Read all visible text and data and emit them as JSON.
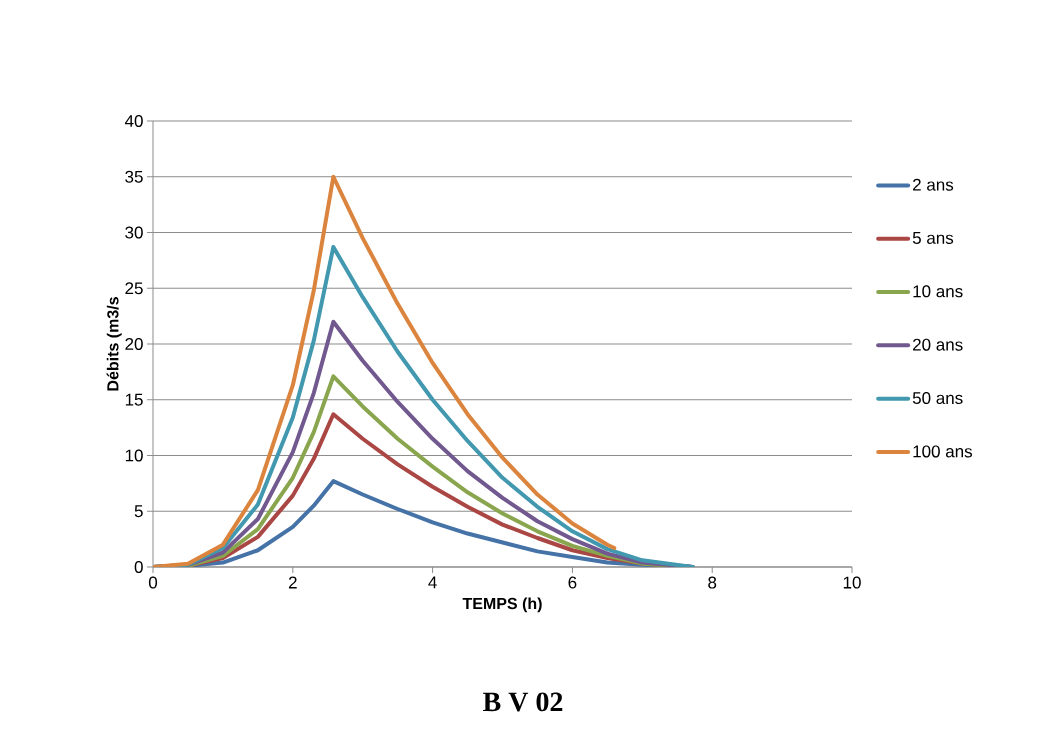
{
  "chart_data": {
    "type": "line",
    "title": "B V 02",
    "xlabel": "TEMPS (h)",
    "ylabel": "Débits (m3/s",
    "x": [
      0,
      0.5,
      1,
      1.5,
      2,
      2.3,
      2.58,
      3,
      3.5,
      4,
      4.5,
      5,
      5.5,
      6,
      6.5,
      7,
      7.72
    ],
    "series": [
      {
        "name": "2 ans",
        "color": "#4572a7",
        "values": [
          0,
          0.1,
          0.4,
          1.5,
          3.6,
          5.5,
          7.7,
          6.5,
          5.2,
          4.0,
          3.0,
          2.2,
          1.4,
          0.9,
          0.4,
          0.2,
          0
        ]
      },
      {
        "name": "5 ans",
        "color": "#aa4643",
        "values": [
          0,
          0.1,
          0.8,
          2.7,
          6.4,
          9.7,
          13.7,
          11.5,
          9.2,
          7.2,
          5.4,
          3.8,
          2.6,
          1.5,
          0.8,
          0.3,
          0
        ]
      },
      {
        "name": "10 ans",
        "color": "#89a54e",
        "values": [
          0,
          0.1,
          1.0,
          3.4,
          8.0,
          12.1,
          17.1,
          14.4,
          11.5,
          9.0,
          6.7,
          4.8,
          3.2,
          1.9,
          1.0,
          0.3,
          0
        ]
      },
      {
        "name": "20 ans",
        "color": "#71588f",
        "values": [
          0,
          0.2,
          1.3,
          4.3,
          10.3,
          15.6,
          22.0,
          18.5,
          14.8,
          11.5,
          8.6,
          6.2,
          4.1,
          2.5,
          1.2,
          0.4,
          0
        ]
      },
      {
        "name": "50 ans",
        "color": "#4198af",
        "values": [
          0,
          0.2,
          1.7,
          5.6,
          13.4,
          20.3,
          28.7,
          24.2,
          19.3,
          15.0,
          11.3,
          8.0,
          5.4,
          3.2,
          1.6,
          0.6,
          0
        ]
      },
      {
        "name": "100 ans",
        "color": "#db843d",
        "x": [
          0,
          0.5,
          1,
          1.5,
          2,
          2.3,
          2.58,
          3,
          3.5,
          4,
          4.5,
          5,
          5.5,
          6,
          6.5,
          6.6
        ],
        "values": [
          0,
          0.3,
          2.0,
          6.9,
          16.3,
          24.8,
          35.0,
          29.5,
          23.6,
          18.3,
          13.7,
          9.8,
          6.5,
          3.9,
          2.0,
          1.7
        ]
      }
    ],
    "xlim": [
      0,
      10
    ],
    "xticks": [
      0,
      2,
      4,
      6,
      8,
      10
    ],
    "ylim": [
      0,
      40
    ],
    "yticks": [
      0,
      5,
      10,
      15,
      20,
      25,
      30,
      35,
      40
    ],
    "grid": "y",
    "legend": "right",
    "line_style": "solid"
  }
}
